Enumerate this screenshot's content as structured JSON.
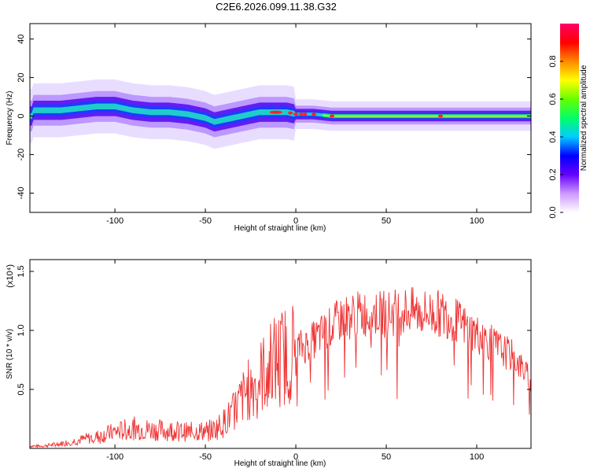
{
  "title": "C2E6.2026.099.11.38.G32",
  "chart_data": [
    {
      "type": "heatmap",
      "name": "spectrogram",
      "xlabel": "Height of straight line (km)",
      "ylabel": "Frequency (Hz)",
      "xlim": [
        -147,
        130
      ],
      "ylim": [
        -50,
        48
      ],
      "xticks": [
        "-100",
        "-50",
        "0",
        "50",
        "100"
      ],
      "yticks": [
        "-40",
        "-20",
        "0",
        "20",
        "40"
      ],
      "colorbar": {
        "label": "Normalized spectral amplitude",
        "range": [
          0,
          1
        ],
        "ticks": [
          "0.0",
          "0.2",
          "0.4",
          "0.6",
          "0.8"
        ],
        "colors": [
          "#ffffff",
          "#cc99ff",
          "#6600ff",
          "#0000ff",
          "#00ccff",
          "#00ff66",
          "#66ff00",
          "#ffff00",
          "#ff8800",
          "#ff0000",
          "#ff0066"
        ]
      },
      "ridge": {
        "x": [
          -145,
          -130,
          -120,
          -110,
          -100,
          -90,
          -80,
          -70,
          -60,
          -50,
          -45,
          -40,
          -35,
          -30,
          -25,
          -20,
          -15,
          -10,
          -5,
          0,
          10,
          20,
          40,
          60,
          80,
          100,
          130
        ],
        "y": [
          3,
          3,
          4,
          5,
          5,
          3,
          2,
          2,
          1,
          -1,
          -3,
          -2,
          -1,
          0,
          1,
          2,
          2,
          2,
          2,
          1,
          1,
          0,
          0,
          0,
          0,
          0,
          0
        ]
      }
    },
    {
      "type": "line",
      "name": "snr",
      "xlabel": "Height of straight line (km)",
      "ylabel": "SNR (10 * v/v)",
      "scale_note": "(x10⁴)",
      "xlim": [
        -147,
        130
      ],
      "ylim": [
        0,
        1.6
      ],
      "xticks": [
        "-100",
        "-50",
        "0",
        "50",
        "100"
      ],
      "yticks": [
        "0.5",
        "1.0",
        "1.5"
      ],
      "color": "#ee3333",
      "x": [
        -147,
        -140,
        -130,
        -120,
        -110,
        -100,
        -90,
        -80,
        -70,
        -60,
        -50,
        -45,
        -40,
        -35,
        -30,
        -25,
        -20,
        -15,
        -10,
        -5,
        0,
        5,
        10,
        15,
        20,
        25,
        30,
        40,
        50,
        60,
        70,
        80,
        85,
        90,
        100,
        110,
        120,
        125,
        130
      ],
      "y": [
        0.02,
        0.02,
        0.04,
        0.07,
        0.1,
        0.14,
        0.17,
        0.16,
        0.15,
        0.14,
        0.15,
        0.16,
        0.22,
        0.3,
        0.42,
        0.52,
        0.6,
        0.7,
        0.76,
        0.8,
        0.85,
        0.87,
        0.92,
        0.98,
        1.03,
        1.1,
        1.12,
        1.15,
        1.14,
        1.17,
        1.15,
        1.14,
        1.12,
        1.07,
        0.97,
        0.87,
        0.78,
        0.68,
        0.58
      ]
    }
  ]
}
